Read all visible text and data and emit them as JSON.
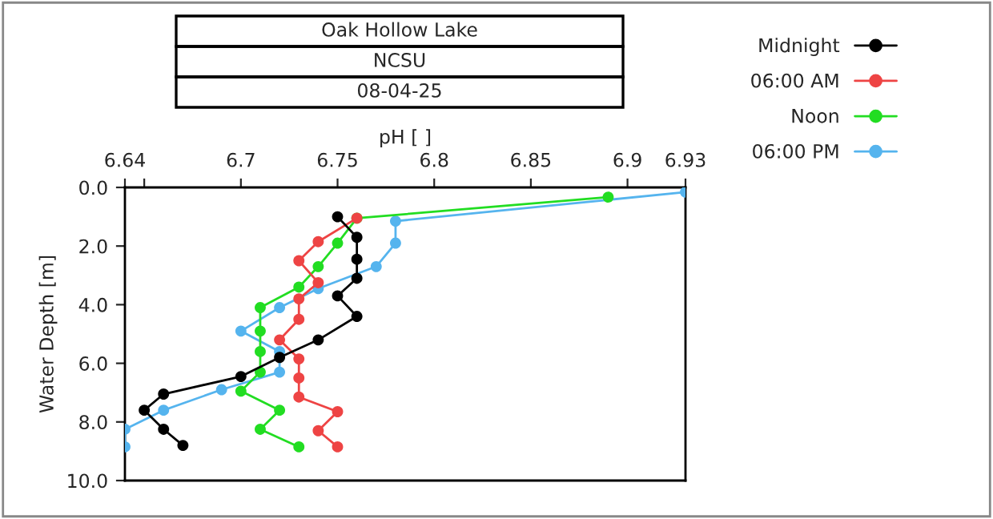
{
  "chart_data": {
    "type": "line",
    "title": "Oak Hollow Lake",
    "subtitle": "NCSU",
    "annotations": [
      "08-04-25"
    ],
    "xlabel": "pH [ ]",
    "ylabel": "Water Depth [m]",
    "xlim": [
      6.64,
      6.93
    ],
    "xticks": [
      6.64,
      {
        "value": 6.65,
        "label": null
      },
      6.7,
      6.75,
      6.8,
      6.85,
      6.9,
      6.93
    ],
    "ylim": [
      10,
      0
    ],
    "yticks": [
      {
        "value": 0,
        "label": "0.0"
      },
      {
        "value": 2,
        "label": "2.0"
      },
      {
        "value": 4,
        "label": "4.0"
      },
      {
        "value": 6,
        "label": "6.0"
      },
      {
        "value": 8,
        "label": "8.0"
      },
      {
        "value": 10,
        "label": "10.0"
      }
    ],
    "grid": false,
    "legend": "top right",
    "marker": "circle",
    "line_style": "solid",
    "series": [
      {
        "name": "Midnight",
        "color": "#000000",
        "x": [
          6.75,
          6.76,
          6.76,
          6.76,
          6.75,
          6.76,
          6.74,
          6.72,
          6.7,
          6.66,
          6.65,
          6.66,
          6.67
        ],
        "values": [
          1.0,
          1.7,
          2.45,
          3.1,
          3.7,
          4.4,
          5.2,
          5.8,
          6.45,
          7.05,
          7.6,
          8.25,
          8.8
        ]
      },
      {
        "name": "06:00 AM",
        "color": "#ee4444",
        "x": [
          6.76,
          6.74,
          6.73,
          6.74,
          6.73,
          6.73,
          6.72,
          6.73,
          6.73,
          6.73,
          6.75,
          6.74,
          6.75
        ],
        "values": [
          1.05,
          1.85,
          2.5,
          3.25,
          3.8,
          4.5,
          5.2,
          5.85,
          6.5,
          7.15,
          7.65,
          8.3,
          8.85
        ]
      },
      {
        "name": "Noon",
        "color": "#22dd22",
        "x": [
          6.89,
          6.76,
          6.75,
          6.74,
          6.73,
          6.71,
          6.71,
          6.71,
          6.71,
          6.7,
          6.72,
          6.71,
          6.73
        ],
        "values": [
          0.33,
          1.05,
          1.9,
          2.7,
          3.4,
          4.1,
          4.9,
          5.6,
          6.3,
          6.95,
          7.6,
          8.25,
          8.85
        ]
      },
      {
        "name": "06:00 PM",
        "color": "#55b4ee",
        "x": [
          6.93,
          6.78,
          6.78,
          6.77,
          6.74,
          6.72,
          6.7,
          6.72,
          6.72,
          6.69,
          6.66,
          6.64,
          6.64
        ],
        "values": [
          0.16,
          1.15,
          1.9,
          2.7,
          3.45,
          4.1,
          4.9,
          5.6,
          6.3,
          6.9,
          7.6,
          8.25,
          8.85
        ]
      }
    ]
  }
}
